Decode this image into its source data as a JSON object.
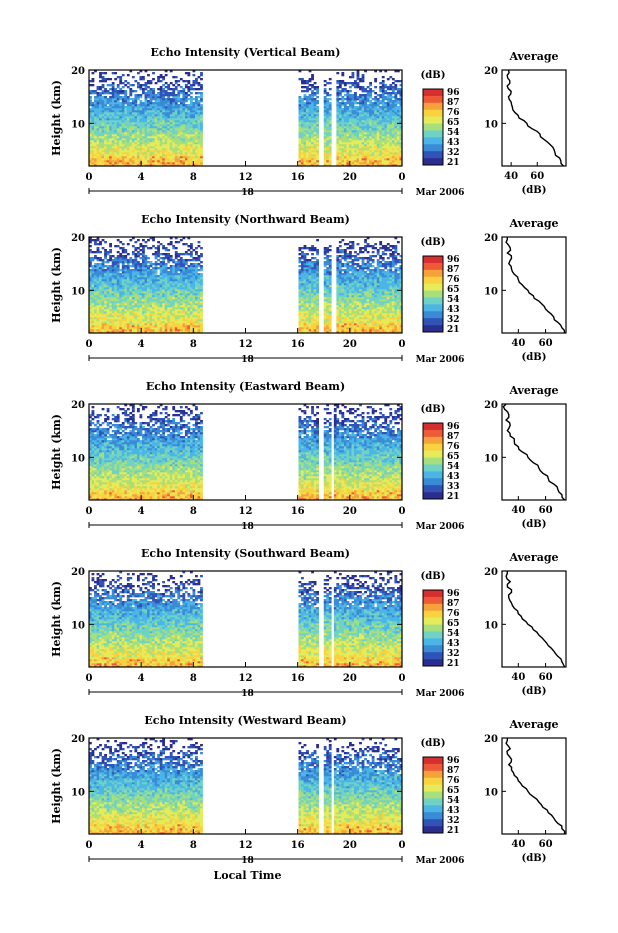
{
  "figure": {
    "xlabel": "Local Time",
    "date_label": "Mar 2006",
    "day_tick": "18"
  },
  "colorbar": {
    "unit": "(dB)",
    "colors": [
      "#2a2f8f",
      "#2f53b7",
      "#3a8bd6",
      "#4bb6e6",
      "#6fd2c4",
      "#a7df7c",
      "#e6eb5a",
      "#f8d23f",
      "#f7a13b",
      "#ee5a37",
      "#d62f2f"
    ]
  },
  "chart_data": [
    {
      "type": "heatmap",
      "title": "Echo Intensity (Vertical Beam)",
      "xlabel": "Local Time",
      "ylabel": "Height (km)",
      "x_ticks": [
        "0",
        "4",
        "8",
        "12",
        "16",
        "20",
        "0"
      ],
      "y_ticks": [
        "10",
        "20"
      ],
      "xlim": [
        0,
        24
      ],
      "ylim": [
        2,
        20
      ],
      "colorbar_ticks": [
        "96",
        "87",
        "76",
        "65",
        "54",
        "43",
        "32",
        "21"
      ],
      "data_gaps_hours": [
        [
          8.8,
          16.0
        ],
        [
          17.7,
          18.0
        ],
        [
          18.6,
          18.9
        ]
      ],
      "average_profile": {
        "title": "Average",
        "xlabel": "(dB)",
        "x_ticks": [
          "40",
          "60"
        ],
        "xlim": [
          33,
          82
        ],
        "ylim": [
          2,
          20
        ],
        "height_km": [
          2,
          3,
          4,
          5,
          6,
          7,
          8,
          9,
          10,
          11,
          12,
          13,
          14,
          15,
          16,
          17,
          18,
          19,
          20
        ],
        "db": [
          80,
          78,
          74,
          73,
          70,
          65,
          62,
          56,
          52,
          46,
          43,
          41,
          40,
          38,
          40,
          37,
          39,
          37,
          38
        ]
      }
    },
    {
      "type": "heatmap",
      "title": "Echo Intensity (Northward Beam)",
      "xlabel": "Local Time",
      "ylabel": "Height (km)",
      "x_ticks": [
        "0",
        "4",
        "8",
        "12",
        "16",
        "20",
        "0"
      ],
      "y_ticks": [
        "10",
        "20"
      ],
      "xlim": [
        0,
        24
      ],
      "ylim": [
        2,
        20
      ],
      "colorbar_ticks": [
        "96",
        "87",
        "76",
        "65",
        "54",
        "43",
        "32",
        "21"
      ],
      "data_gaps_hours": [
        [
          8.8,
          16.0
        ],
        [
          17.6,
          18.0
        ],
        [
          18.6,
          18.9
        ]
      ],
      "average_profile": {
        "title": "Average",
        "xlabel": "(dB)",
        "x_ticks": [
          "40",
          "60"
        ],
        "xlim": [
          28,
          75
        ],
        "ylim": [
          2,
          20
        ],
        "height_km": [
          2,
          3,
          4,
          5,
          6,
          7,
          8,
          9,
          10,
          11,
          12,
          13,
          14,
          15,
          16,
          17,
          18,
          19,
          20
        ],
        "db": [
          74,
          72,
          69,
          66,
          62,
          59,
          55,
          51,
          47,
          43,
          40,
          37,
          35,
          33,
          35,
          32,
          34,
          31,
          32
        ]
      }
    },
    {
      "type": "heatmap",
      "title": "Echo Intensity (Eastward Beam)",
      "xlabel": "Local Time",
      "ylabel": "Height (km)",
      "x_ticks": [
        "0",
        "4",
        "8",
        "12",
        "16",
        "20",
        "0"
      ],
      "y_ticks": [
        "10",
        "20"
      ],
      "xlim": [
        0,
        24
      ],
      "ylim": [
        2,
        20
      ],
      "colorbar_ticks": [
        "96",
        "87",
        "76",
        "65",
        "54",
        "43",
        "33",
        "21"
      ],
      "data_gaps_hours": [
        [
          8.8,
          16.0
        ],
        [
          17.6,
          18.0
        ],
        [
          18.5,
          18.8
        ]
      ],
      "average_profile": {
        "title": "Average",
        "xlabel": "(dB)",
        "x_ticks": [
          "40",
          "60"
        ],
        "xlim": [
          28,
          75
        ],
        "ylim": [
          2,
          20
        ],
        "height_km": [
          2,
          3,
          4,
          5,
          6,
          7,
          8,
          9,
          10,
          11,
          12,
          13,
          14,
          15,
          16,
          17,
          18,
          19,
          20
        ],
        "db": [
          74,
          72,
          69,
          66,
          62,
          58,
          55,
          51,
          47,
          43,
          40,
          37,
          34,
          32,
          34,
          31,
          33,
          30,
          31
        ]
      }
    },
    {
      "type": "heatmap",
      "title": "Echo Intensity (Southward Beam)",
      "xlabel": "Local Time",
      "ylabel": "Height (km)",
      "x_ticks": [
        "0",
        "4",
        "8",
        "12",
        "16",
        "20",
        "0"
      ],
      "y_ticks": [
        "10",
        "20"
      ],
      "xlim": [
        0,
        24
      ],
      "ylim": [
        2,
        20
      ],
      "colorbar_ticks": [
        "96",
        "87",
        "76",
        "65",
        "54",
        "43",
        "32",
        "21"
      ],
      "data_gaps_hours": [
        [
          8.8,
          16.0
        ],
        [
          17.6,
          18.0
        ],
        [
          18.5,
          18.8
        ]
      ],
      "average_profile": {
        "title": "Average",
        "xlabel": "(dB)",
        "x_ticks": [
          "40",
          "60"
        ],
        "xlim": [
          28,
          75
        ],
        "ylim": [
          2,
          20
        ],
        "height_km": [
          2,
          3,
          4,
          5,
          6,
          7,
          8,
          9,
          10,
          11,
          12,
          13,
          14,
          15,
          16,
          17,
          18,
          19,
          20
        ],
        "db": [
          74,
          72,
          69,
          66,
          62,
          59,
          55,
          51,
          47,
          43,
          40,
          37,
          35,
          33,
          35,
          32,
          34,
          31,
          32
        ]
      }
    },
    {
      "type": "heatmap",
      "title": "Echo Intensity (Westward Beam)",
      "xlabel": "Local Time",
      "ylabel": "Height (km)",
      "x_ticks": [
        "0",
        "4",
        "8",
        "12",
        "16",
        "20",
        "0"
      ],
      "y_ticks": [
        "10",
        "20"
      ],
      "xlim": [
        0,
        24
      ],
      "ylim": [
        2,
        20
      ],
      "colorbar_ticks": [
        "96",
        "87",
        "76",
        "65",
        "54",
        "43",
        "32",
        "21"
      ],
      "data_gaps_hours": [
        [
          8.8,
          16.0
        ],
        [
          17.6,
          18.0
        ],
        [
          18.5,
          18.8
        ]
      ],
      "average_profile": {
        "title": "Average",
        "xlabel": "(dB)",
        "x_ticks": [
          "40",
          "60"
        ],
        "xlim": [
          28,
          75
        ],
        "ylim": [
          2,
          20
        ],
        "height_km": [
          2,
          3,
          4,
          5,
          6,
          7,
          8,
          9,
          10,
          11,
          12,
          13,
          14,
          15,
          16,
          17,
          18,
          19,
          20
        ],
        "db": [
          74,
          72,
          69,
          66,
          62,
          58,
          55,
          51,
          47,
          43,
          40,
          37,
          35,
          33,
          35,
          32,
          34,
          31,
          32
        ]
      }
    }
  ]
}
